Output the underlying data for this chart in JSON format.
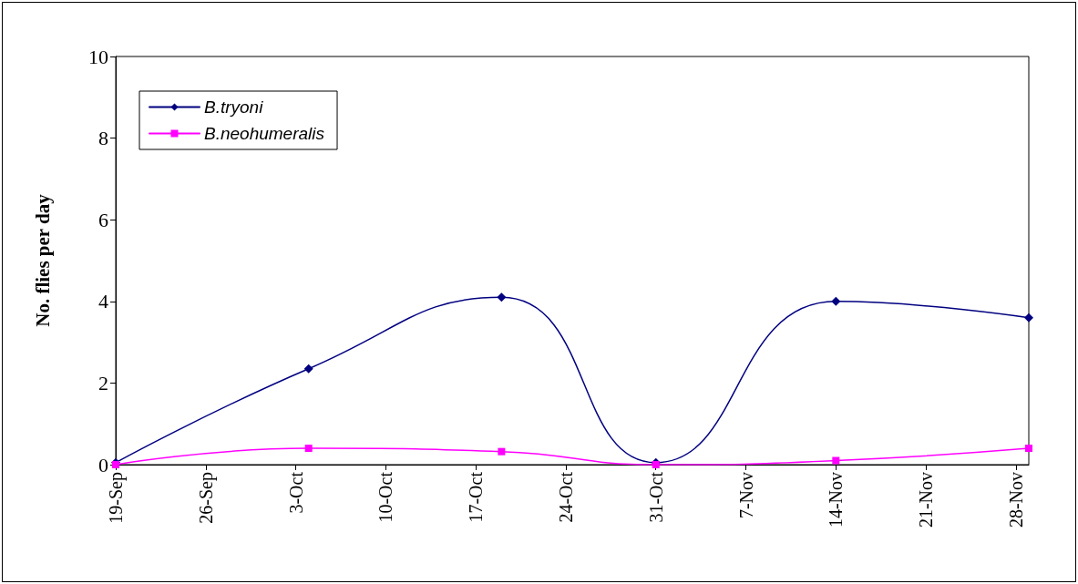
{
  "chart_data": {
    "type": "line",
    "ylabel": "No. flies per day",
    "x": [
      "--09-19",
      "--10-04",
      "--10-19",
      "--10-31",
      "--11-14",
      "--11-29"
    ],
    "series": [
      {
        "name": "B.tryoni",
        "color": "#000080",
        "marker": "diamond",
        "values": [
          0.05,
          2.35,
          4.1,
          0.05,
          4.0,
          3.6
        ]
      },
      {
        "name": "B.neohumeralis",
        "color": "#ff00ff",
        "marker": "square",
        "values": [
          0,
          0.4,
          0.32,
          0,
          0.1,
          0.4
        ]
      }
    ],
    "xlim": [
      "--09-19",
      "--11-29"
    ],
    "xticks": [
      {
        "value": "--09-19",
        "label": "19-Sep"
      },
      {
        "value": "--09-26",
        "label": "26-Sep"
      },
      {
        "value": "--10-03",
        "label": "3-Oct"
      },
      {
        "value": "--10-10",
        "label": "10-Oct"
      },
      {
        "value": "--10-17",
        "label": "17-Oct"
      },
      {
        "value": "--10-24",
        "label": "24-Oct"
      },
      {
        "value": "--10-31",
        "label": "31-Oct"
      },
      {
        "value": "--11-07",
        "label": "7-Nov"
      },
      {
        "value": "--11-14",
        "label": "14-Nov"
      },
      {
        "value": "--11-21",
        "label": "21-Nov"
      },
      {
        "value": "--11-28",
        "label": "28-Nov"
      }
    ],
    "ylim": [
      0,
      10
    ],
    "yticks": [
      0,
      2,
      4,
      6,
      8,
      10
    ],
    "grid": false,
    "legend": "top left",
    "line_style": "solid"
  }
}
